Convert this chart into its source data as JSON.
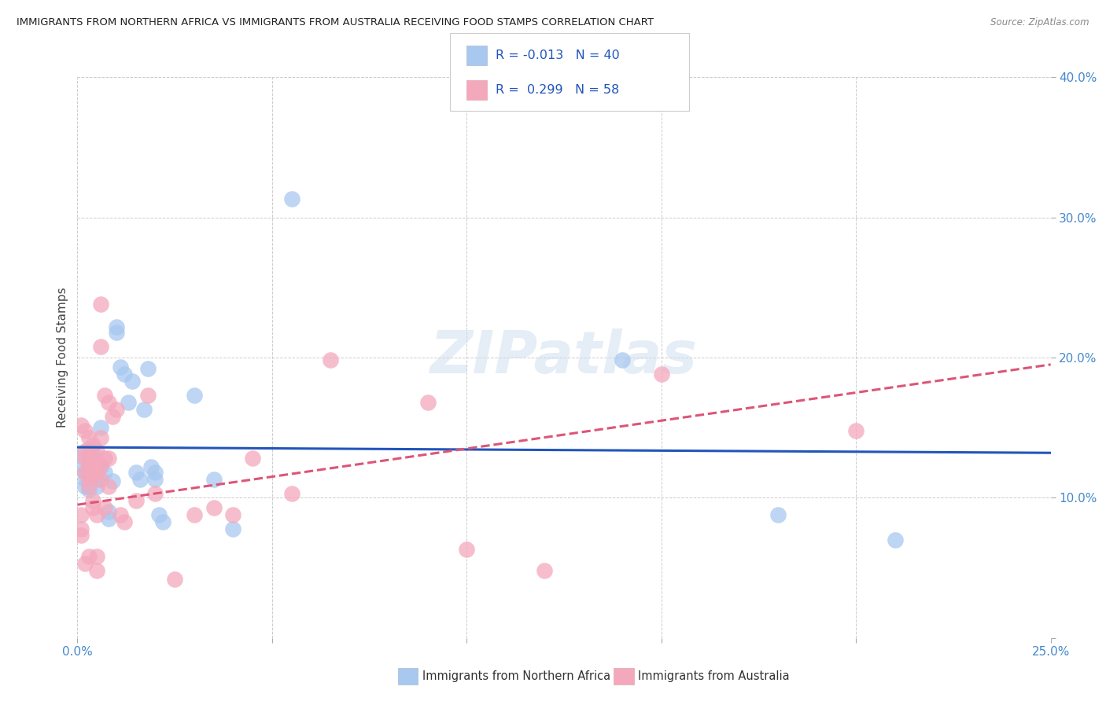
{
  "title": "IMMIGRANTS FROM NORTHERN AFRICA VS IMMIGRANTS FROM AUSTRALIA RECEIVING FOOD STAMPS CORRELATION CHART",
  "source": "Source: ZipAtlas.com",
  "xlabel_legend1": "Immigrants from Northern Africa",
  "xlabel_legend2": "Immigrants from Australia",
  "ylabel": "Receiving Food Stamps",
  "xlim": [
    0.0,
    0.25
  ],
  "ylim": [
    0.0,
    0.4
  ],
  "xticks": [
    0.0,
    0.05,
    0.1,
    0.15,
    0.2,
    0.25
  ],
  "yticks": [
    0.0,
    0.1,
    0.2,
    0.3,
    0.4
  ],
  "color_blue": "#a8c8f0",
  "color_pink": "#f4a8bc",
  "color_blue_line": "#2255bb",
  "color_pink_line": "#dd5577",
  "R_blue": -0.013,
  "N_blue": 40,
  "R_pink": 0.299,
  "N_pink": 58,
  "legend_text_color": "#2255bb",
  "watermark": "ZIPatlas",
  "blue_points": [
    [
      0.001,
      0.13
    ],
    [
      0.001,
      0.122
    ],
    [
      0.002,
      0.118
    ],
    [
      0.002,
      0.113
    ],
    [
      0.002,
      0.108
    ],
    [
      0.003,
      0.106
    ],
    [
      0.003,
      0.125
    ],
    [
      0.003,
      0.135
    ],
    [
      0.004,
      0.132
    ],
    [
      0.004,
      0.128
    ],
    [
      0.005,
      0.113
    ],
    [
      0.005,
      0.108
    ],
    [
      0.006,
      0.122
    ],
    [
      0.006,
      0.15
    ],
    [
      0.007,
      0.118
    ],
    [
      0.008,
      0.09
    ],
    [
      0.008,
      0.085
    ],
    [
      0.009,
      0.112
    ],
    [
      0.01,
      0.222
    ],
    [
      0.01,
      0.218
    ],
    [
      0.011,
      0.193
    ],
    [
      0.012,
      0.188
    ],
    [
      0.013,
      0.168
    ],
    [
      0.014,
      0.183
    ],
    [
      0.015,
      0.118
    ],
    [
      0.016,
      0.113
    ],
    [
      0.017,
      0.163
    ],
    [
      0.018,
      0.192
    ],
    [
      0.019,
      0.122
    ],
    [
      0.02,
      0.118
    ],
    [
      0.02,
      0.113
    ],
    [
      0.021,
      0.088
    ],
    [
      0.022,
      0.083
    ],
    [
      0.03,
      0.173
    ],
    [
      0.035,
      0.113
    ],
    [
      0.04,
      0.078
    ],
    [
      0.055,
      0.313
    ],
    [
      0.14,
      0.198
    ],
    [
      0.18,
      0.088
    ],
    [
      0.21,
      0.07
    ]
  ],
  "pink_points": [
    [
      0.001,
      0.152
    ],
    [
      0.001,
      0.088
    ],
    [
      0.001,
      0.078
    ],
    [
      0.001,
      0.073
    ],
    [
      0.002,
      0.148
    ],
    [
      0.002,
      0.133
    ],
    [
      0.002,
      0.128
    ],
    [
      0.002,
      0.118
    ],
    [
      0.002,
      0.053
    ],
    [
      0.003,
      0.143
    ],
    [
      0.003,
      0.128
    ],
    [
      0.003,
      0.123
    ],
    [
      0.003,
      0.118
    ],
    [
      0.003,
      0.113
    ],
    [
      0.003,
      0.108
    ],
    [
      0.003,
      0.058
    ],
    [
      0.004,
      0.138
    ],
    [
      0.004,
      0.128
    ],
    [
      0.004,
      0.123
    ],
    [
      0.004,
      0.118
    ],
    [
      0.004,
      0.098
    ],
    [
      0.004,
      0.093
    ],
    [
      0.005,
      0.133
    ],
    [
      0.005,
      0.123
    ],
    [
      0.005,
      0.118
    ],
    [
      0.005,
      0.088
    ],
    [
      0.005,
      0.058
    ],
    [
      0.005,
      0.048
    ],
    [
      0.006,
      0.238
    ],
    [
      0.006,
      0.208
    ],
    [
      0.006,
      0.143
    ],
    [
      0.006,
      0.123
    ],
    [
      0.006,
      0.113
    ],
    [
      0.007,
      0.173
    ],
    [
      0.007,
      0.128
    ],
    [
      0.007,
      0.093
    ],
    [
      0.008,
      0.168
    ],
    [
      0.008,
      0.128
    ],
    [
      0.008,
      0.108
    ],
    [
      0.009,
      0.158
    ],
    [
      0.01,
      0.163
    ],
    [
      0.011,
      0.088
    ],
    [
      0.012,
      0.083
    ],
    [
      0.015,
      0.098
    ],
    [
      0.018,
      0.173
    ],
    [
      0.02,
      0.103
    ],
    [
      0.025,
      0.042
    ],
    [
      0.03,
      0.088
    ],
    [
      0.035,
      0.093
    ],
    [
      0.04,
      0.088
    ],
    [
      0.045,
      0.128
    ],
    [
      0.055,
      0.103
    ],
    [
      0.065,
      0.198
    ],
    [
      0.09,
      0.168
    ],
    [
      0.1,
      0.063
    ],
    [
      0.12,
      0.048
    ],
    [
      0.15,
      0.188
    ],
    [
      0.2,
      0.148
    ]
  ],
  "blue_trend": [
    0.0,
    0.25,
    0.136,
    0.132
  ],
  "pink_trend": [
    0.0,
    0.25,
    0.095,
    0.195
  ]
}
